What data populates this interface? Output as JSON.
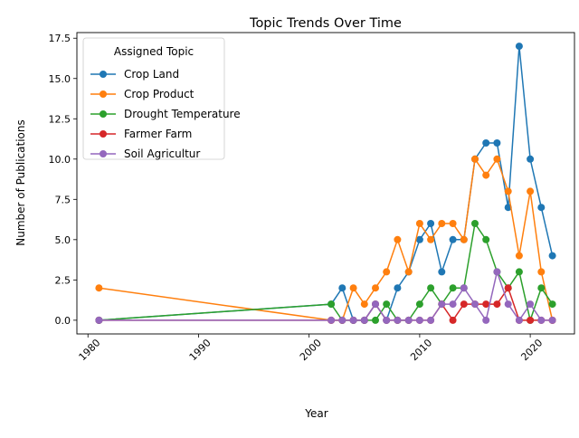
{
  "chart_data": {
    "type": "line",
    "title": "Topic Trends Over Time",
    "xlabel": "Year",
    "ylabel": "Number of Publications",
    "xlim": [
      1979.0,
      2024.0
    ],
    "ylim": [
      -0.85,
      17.85
    ],
    "xticks": [
      1980,
      1990,
      2000,
      2010,
      2020
    ],
    "yticks": [
      0.0,
      2.5,
      5.0,
      7.5,
      10.0,
      12.5,
      15.0,
      17.5
    ],
    "xtick_labels": [
      "1980",
      "1990",
      "2000",
      "2010",
      "2020"
    ],
    "ytick_labels": [
      "0.0",
      "2.5",
      "5.0",
      "7.5",
      "10.0",
      "12.5",
      "15.0",
      "17.5"
    ],
    "grid": false,
    "legend": {
      "title": "Assigned Topic",
      "placement": "top-left"
    },
    "x": [
      1981,
      2002,
      2003,
      2004,
      2005,
      2006,
      2007,
      2008,
      2009,
      2010,
      2011,
      2012,
      2013,
      2014,
      2015,
      2016,
      2017,
      2018,
      2019,
      2020,
      2021,
      2022
    ],
    "series": [
      {
        "name": "Crop Land",
        "color": "#1f77b4",
        "values": [
          0,
          1,
          2,
          0,
          0,
          1,
          0,
          2,
          3,
          5,
          6,
          3,
          5,
          5,
          10,
          11,
          11,
          7,
          17,
          10,
          7,
          4
        ]
      },
      {
        "name": "Crop Product",
        "color": "#ff7f0e",
        "values": [
          2,
          0,
          0,
          2,
          1,
          2,
          3,
          5,
          3,
          6,
          5,
          6,
          6,
          5,
          10,
          9,
          10,
          8,
          4,
          8,
          3,
          0
        ]
      },
      {
        "name": "Drought Temperature",
        "color": "#2ca02c",
        "values": [
          0,
          1,
          0,
          0,
          0,
          0,
          1,
          0,
          0,
          1,
          2,
          1,
          2,
          2,
          6,
          5,
          3,
          2,
          3,
          0,
          2,
          1
        ]
      },
      {
        "name": "Farmer Farm",
        "color": "#d62728",
        "values": [
          0,
          0,
          0,
          0,
          0,
          1,
          0,
          0,
          0,
          0,
          0,
          1,
          0,
          1,
          1,
          1,
          1,
          2,
          0,
          0,
          0,
          0
        ]
      },
      {
        "name": "Soil Agricultur",
        "color": "#9467bd",
        "values": [
          0,
          0,
          0,
          0,
          0,
          1,
          0,
          0,
          0,
          0,
          0,
          1,
          1,
          2,
          1,
          0,
          3,
          1,
          0,
          1,
          0,
          0
        ]
      }
    ]
  }
}
